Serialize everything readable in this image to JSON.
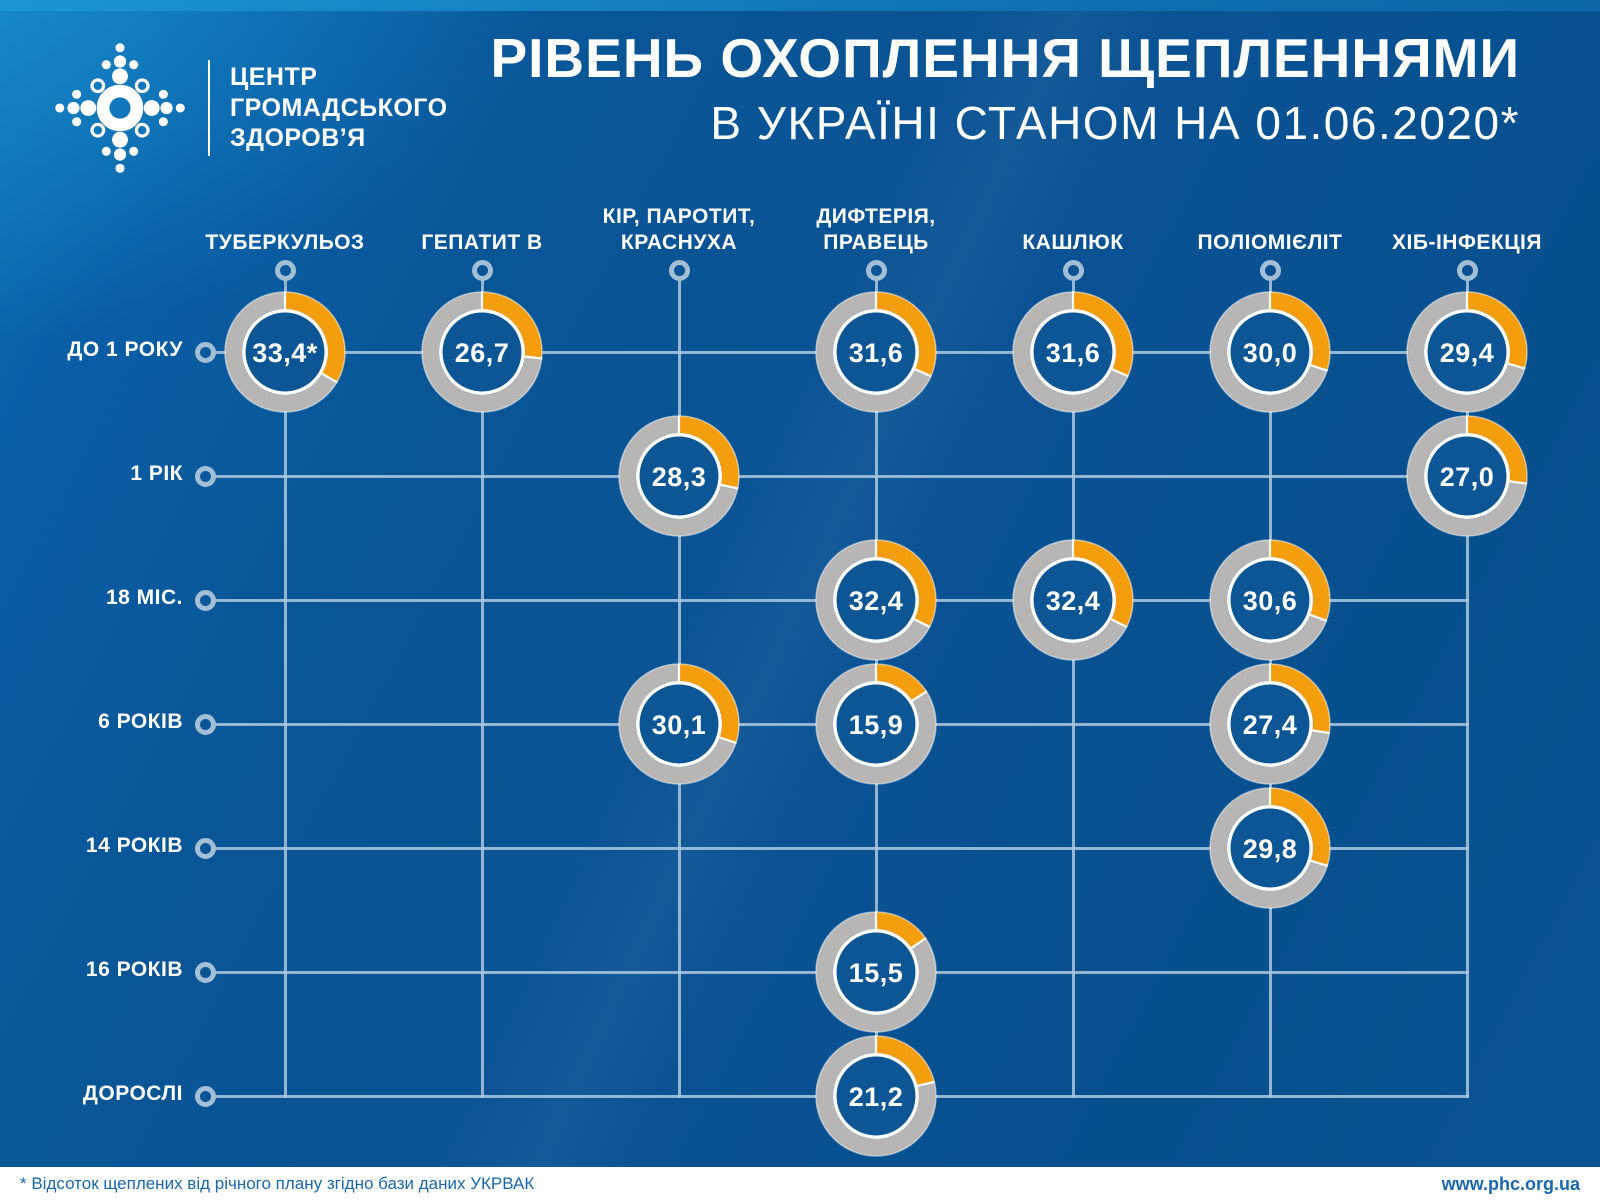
{
  "logo": {
    "org_lines": [
      "ЦЕНТР",
      "ГРОМАДСЬКОГО",
      "ЗДОРОВ’Я"
    ]
  },
  "title": {
    "line1": "РІВЕНЬ ОХОПЛЕННЯ ЩЕПЛЕННЯМИ",
    "line2": "В УКРАЇНІ СТАНОМ НА 01.06.2020*"
  },
  "footer": {
    "note": "* Відсоток щеплених від річного плану згідно бази даних УКРВАК",
    "website": "www.phc.org.ua"
  },
  "colors": {
    "background": "#0a5294",
    "accent_orange": "#F49D0D",
    "ring_gray": "#b7b6b4",
    "inner_blue": "#0d5695",
    "grid_line": "#a9c6dc",
    "text_white": "#ffffff",
    "footer_text": "#1a67ae"
  },
  "chart_data": {
    "type": "donut-grid",
    "title": "РІВЕНЬ ОХОПЛЕННЯ ЩЕПЛЕННЯМИ В УКРАЇНІ СТАНОМ НА 01.06.2020*",
    "value_note": "* Відсоток щеплених від річного плану згідно бази даних УКРВАК",
    "value_range": [
      0,
      100
    ],
    "legend_position": "none",
    "columns": [
      {
        "lines": [
          "ТУБЕРКУЛЬОЗ"
        ]
      },
      {
        "lines": [
          "ГЕПАТИТ В"
        ]
      },
      {
        "lines": [
          "КІР, ПАРОТИТ,",
          "КРАСНУХА"
        ]
      },
      {
        "lines": [
          "ДИФТЕРІЯ,",
          "ПРАВЕЦЬ"
        ]
      },
      {
        "lines": [
          "КАШЛЮК"
        ]
      },
      {
        "lines": [
          "ПОЛІОМІЄЛІТ"
        ]
      },
      {
        "lines": [
          "ХІБ-ІНФЕКЦІЯ"
        ]
      }
    ],
    "rows": [
      "ДО 1 РОКУ",
      "1 РІК",
      "18 МІС.",
      "6 РОКІВ",
      "14 РОКІВ",
      "16 РОКІВ",
      "ДОРОСЛІ"
    ],
    "values": [
      {
        "col": 0,
        "row": 0,
        "label": "33,4*",
        "percent": 33.4
      },
      {
        "col": 1,
        "row": 0,
        "label": "26,7",
        "percent": 26.7
      },
      {
        "col": 2,
        "row": 1,
        "label": "28,3",
        "percent": 28.3
      },
      {
        "col": 2,
        "row": 3,
        "label": "30,1",
        "percent": 30.1
      },
      {
        "col": 3,
        "row": 0,
        "label": "31,6",
        "percent": 31.6
      },
      {
        "col": 3,
        "row": 2,
        "label": "32,4",
        "percent": 32.4
      },
      {
        "col": 3,
        "row": 3,
        "label": "15,9",
        "percent": 15.9
      },
      {
        "col": 3,
        "row": 5,
        "label": "15,5",
        "percent": 15.5
      },
      {
        "col": 3,
        "row": 6,
        "label": "21,2",
        "percent": 21.2
      },
      {
        "col": 4,
        "row": 0,
        "label": "31,6",
        "percent": 31.6
      },
      {
        "col": 4,
        "row": 2,
        "label": "32,4",
        "percent": 32.4
      },
      {
        "col": 5,
        "row": 0,
        "label": "30,0",
        "percent": 30.0
      },
      {
        "col": 5,
        "row": 2,
        "label": "30,6",
        "percent": 30.6
      },
      {
        "col": 5,
        "row": 3,
        "label": "27,4",
        "percent": 27.4
      },
      {
        "col": 5,
        "row": 4,
        "label": "29,8",
        "percent": 29.8
      },
      {
        "col": 6,
        "row": 0,
        "label": "29,4",
        "percent": 29.4
      },
      {
        "col": 6,
        "row": 1,
        "label": "27,0",
        "percent": 27.0
      }
    ]
  }
}
